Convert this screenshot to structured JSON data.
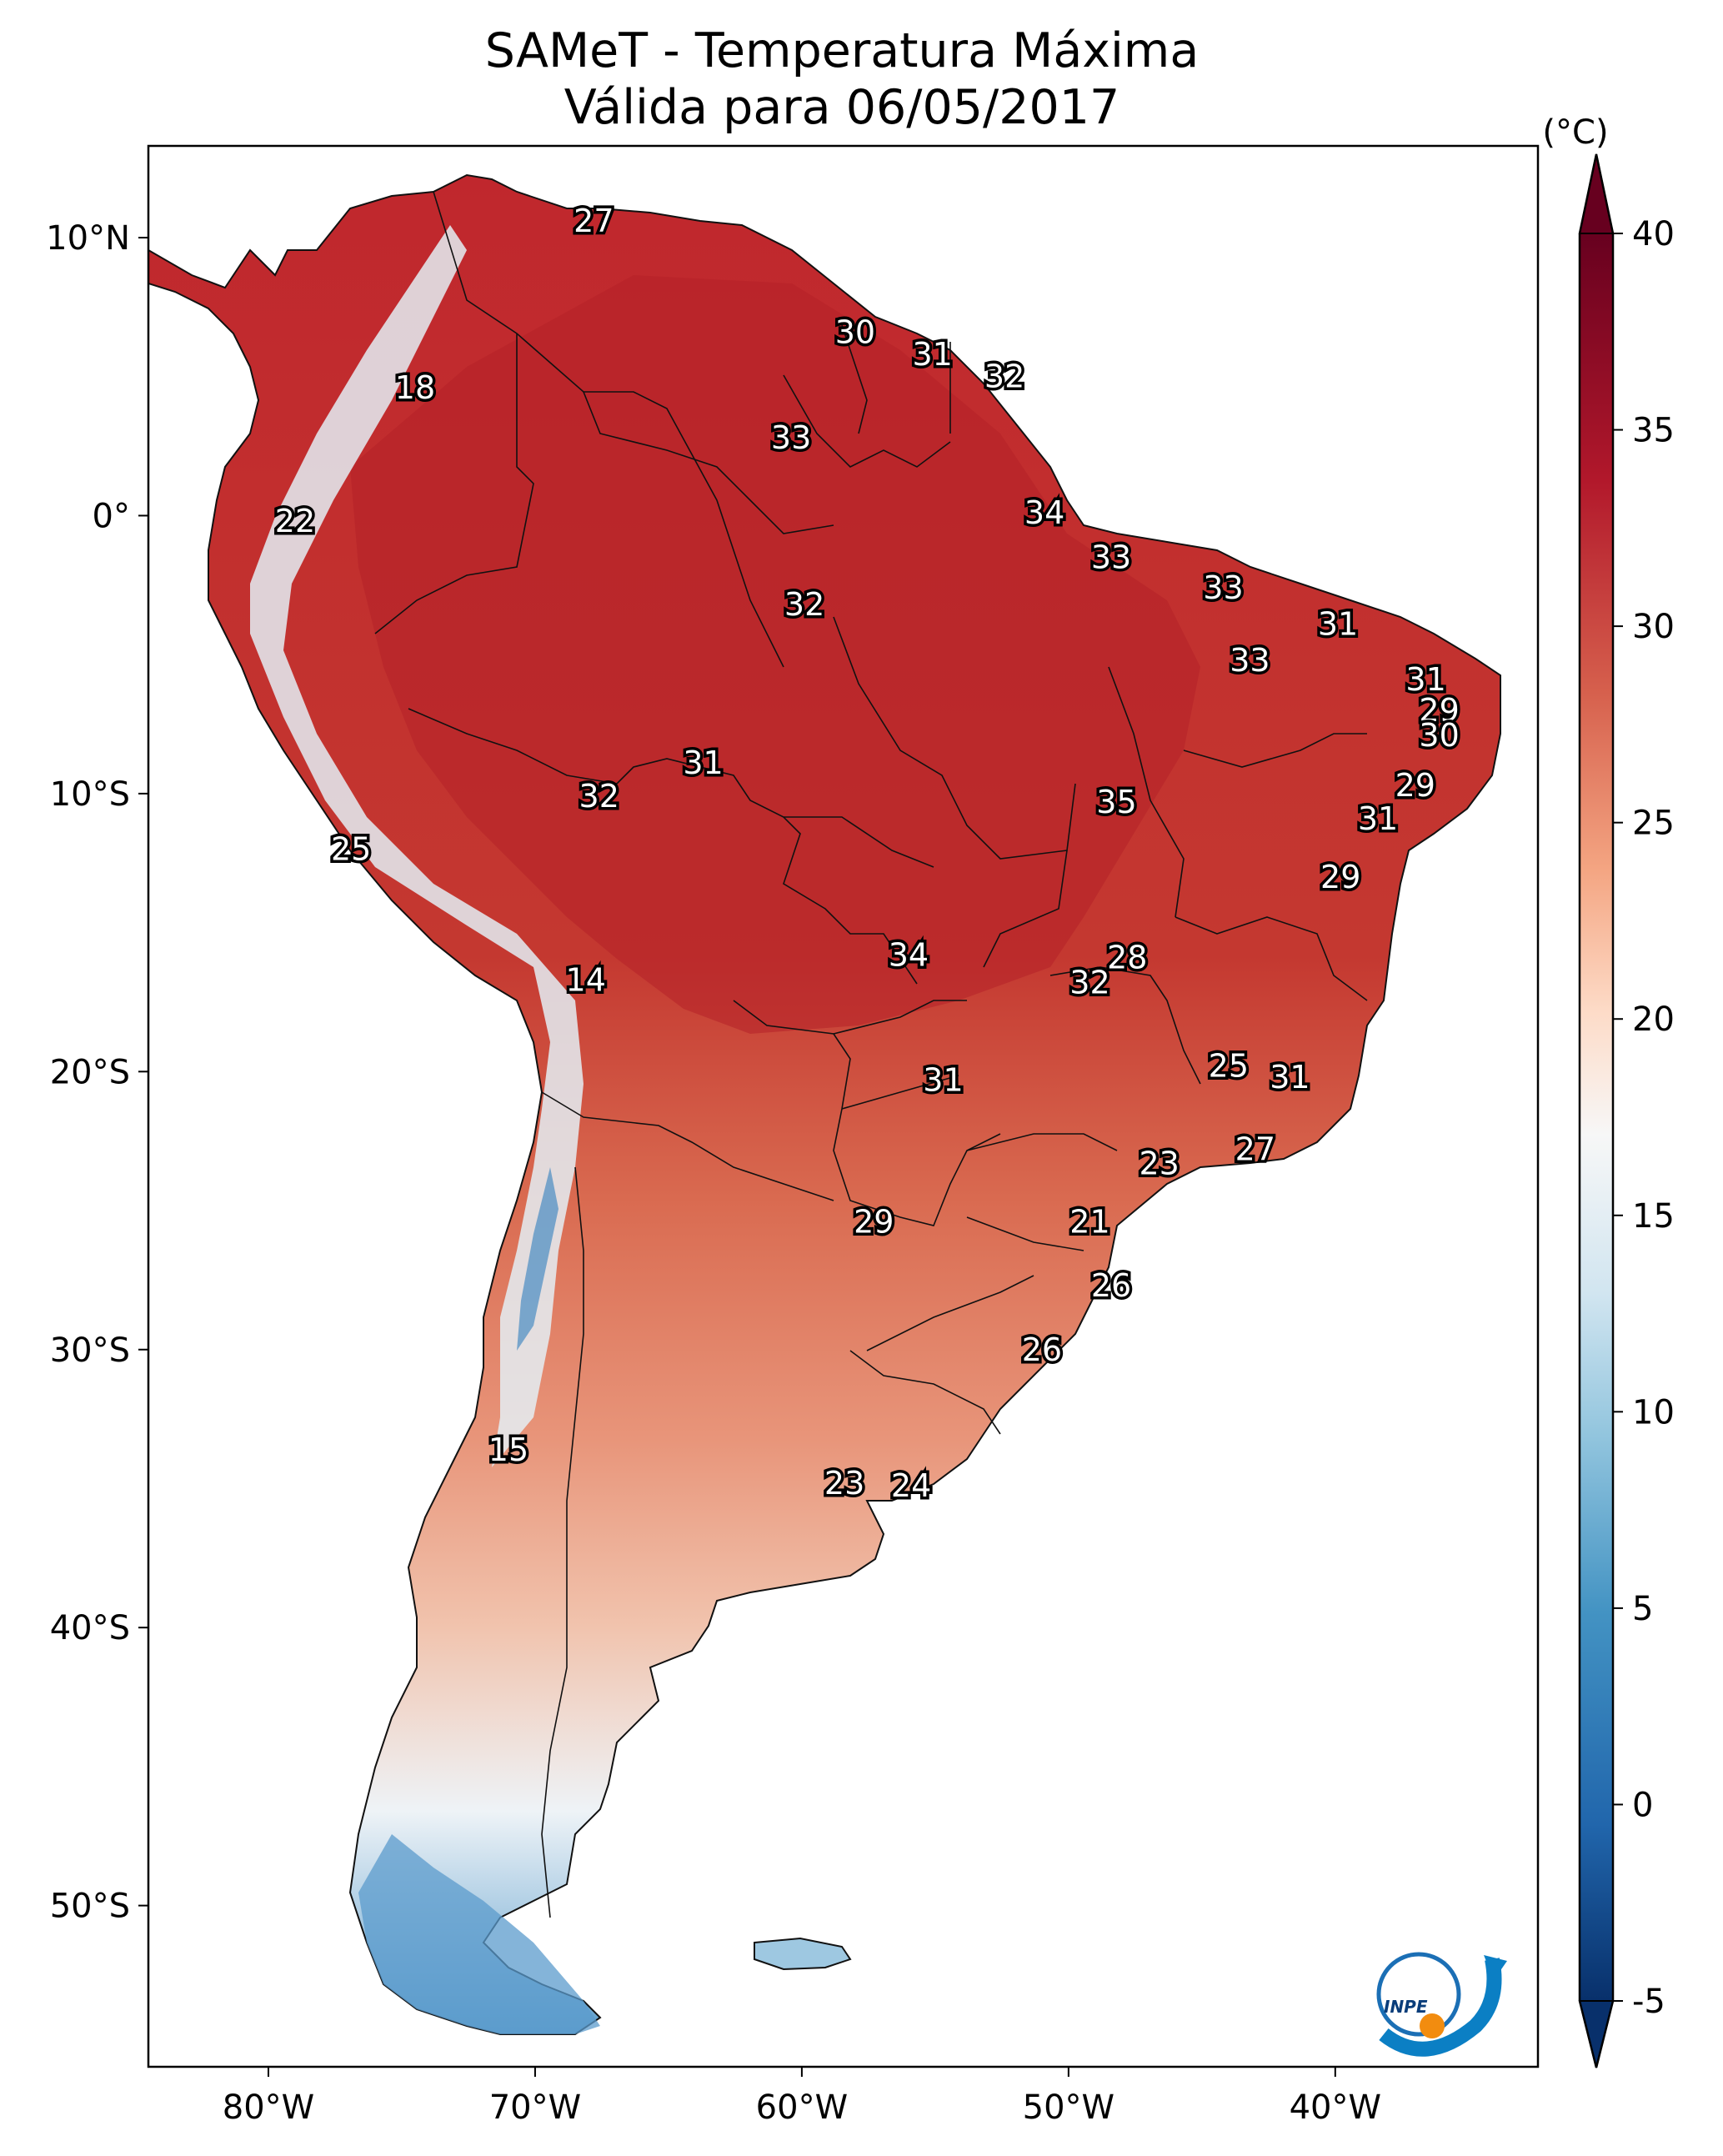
{
  "title": {
    "line1": "SAMeT - Temperatura Máxima",
    "line2": "Válida para 06/05/2017"
  },
  "colorbar": {
    "unit": "(°C)",
    "ticks": [
      "40",
      "35",
      "30",
      "25",
      "20",
      "15",
      "10",
      "5",
      "0",
      "-5"
    ],
    "tick_values": [
      40,
      35,
      30,
      25,
      20,
      15,
      10,
      5,
      0,
      -5
    ],
    "range": [
      -5,
      40
    ],
    "extend": "both",
    "colormap": "RdBu_r",
    "colors": [
      "#08306b",
      "#2166ac",
      "#4393c3",
      "#92c5de",
      "#d1e5f0",
      "#f7f7f7",
      "#fddbc7",
      "#f4a582",
      "#d6604d",
      "#b2182b",
      "#67001f"
    ]
  },
  "axes": {
    "x_ticks": [
      {
        "label": "80°W",
        "value": -80
      },
      {
        "label": "70°W",
        "value": -70
      },
      {
        "label": "60°W",
        "value": -60
      },
      {
        "label": "50°W",
        "value": -50
      },
      {
        "label": "40°W",
        "value": -40
      }
    ],
    "y_ticks": [
      {
        "label": "10°N",
        "value": 10
      },
      {
        "label": "0°",
        "value": 0
      },
      {
        "label": "10°S",
        "value": -10
      },
      {
        "label": "20°S",
        "value": -20
      },
      {
        "label": "30°S",
        "value": -30
      },
      {
        "label": "40°S",
        "value": -40
      },
      {
        "label": "50°S",
        "value": -50
      }
    ],
    "lon_range": [
      -83,
      -33
    ],
    "lat_range": [
      -56,
      13
    ]
  },
  "labels": [
    {
      "text": "27",
      "lon": -67.8,
      "lat": 10.6
    },
    {
      "text": "30",
      "lon": -58.0,
      "lat": 6.6
    },
    {
      "text": "31",
      "lon": -55.1,
      "lat": 5.8
    },
    {
      "text": "32",
      "lon": -52.4,
      "lat": 5.0
    },
    {
      "text": "18",
      "lon": -74.5,
      "lat": 4.6
    },
    {
      "text": "33",
      "lon": -60.4,
      "lat": 2.8
    },
    {
      "text": "34",
      "lon": -50.9,
      "lat": 0.1
    },
    {
      "text": "22",
      "lon": -79.0,
      "lat": -0.2
    },
    {
      "text": "33",
      "lon": -48.4,
      "lat": -1.5
    },
    {
      "text": "33",
      "lon": -44.2,
      "lat": -2.6
    },
    {
      "text": "32",
      "lon": -59.9,
      "lat": -3.2
    },
    {
      "text": "31",
      "lon": -39.9,
      "lat": -3.9
    },
    {
      "text": "33",
      "lon": -43.2,
      "lat": -5.2
    },
    {
      "text": "31",
      "lon": -36.6,
      "lat": -5.9
    },
    {
      "text": "29",
      "lon": -36.1,
      "lat": -7.0
    },
    {
      "text": "30",
      "lon": -36.1,
      "lat": -7.9
    },
    {
      "text": "31",
      "lon": -63.7,
      "lat": -8.9
    },
    {
      "text": "29",
      "lon": -37.0,
      "lat": -9.7
    },
    {
      "text": "32",
      "lon": -67.6,
      "lat": -10.1
    },
    {
      "text": "35",
      "lon": -48.2,
      "lat": -10.3
    },
    {
      "text": "31",
      "lon": -38.4,
      "lat": -10.9
    },
    {
      "text": "25",
      "lon": -76.9,
      "lat": -12.0
    },
    {
      "text": "29",
      "lon": -39.8,
      "lat": -13.0
    },
    {
      "text": "34",
      "lon": -56.0,
      "lat": -15.8
    },
    {
      "text": "28",
      "lon": -47.8,
      "lat": -15.9
    },
    {
      "text": "14",
      "lon": -68.1,
      "lat": -16.7
    },
    {
      "text": "32",
      "lon": -49.2,
      "lat": -16.8
    },
    {
      "text": "25",
      "lon": -44.0,
      "lat": -19.8
    },
    {
      "text": "31",
      "lon": -41.7,
      "lat": -20.2
    },
    {
      "text": "31",
      "lon": -54.7,
      "lat": -20.3
    },
    {
      "text": "27",
      "lon": -43.0,
      "lat": -22.8
    },
    {
      "text": "23",
      "lon": -46.6,
      "lat": -23.3
    },
    {
      "text": "29",
      "lon": -57.3,
      "lat": -25.4
    },
    {
      "text": "21",
      "lon": -49.2,
      "lat": -25.4
    },
    {
      "text": "26",
      "lon": -48.4,
      "lat": -27.7
    },
    {
      "text": "26",
      "lon": -51.0,
      "lat": -30.0
    },
    {
      "text": "15",
      "lon": -71.0,
      "lat": -33.6
    },
    {
      "text": "23",
      "lon": -58.4,
      "lat": -34.8
    },
    {
      "text": "24",
      "lon": -55.9,
      "lat": -34.9
    }
  ],
  "logo": {
    "text": "INPE"
  }
}
